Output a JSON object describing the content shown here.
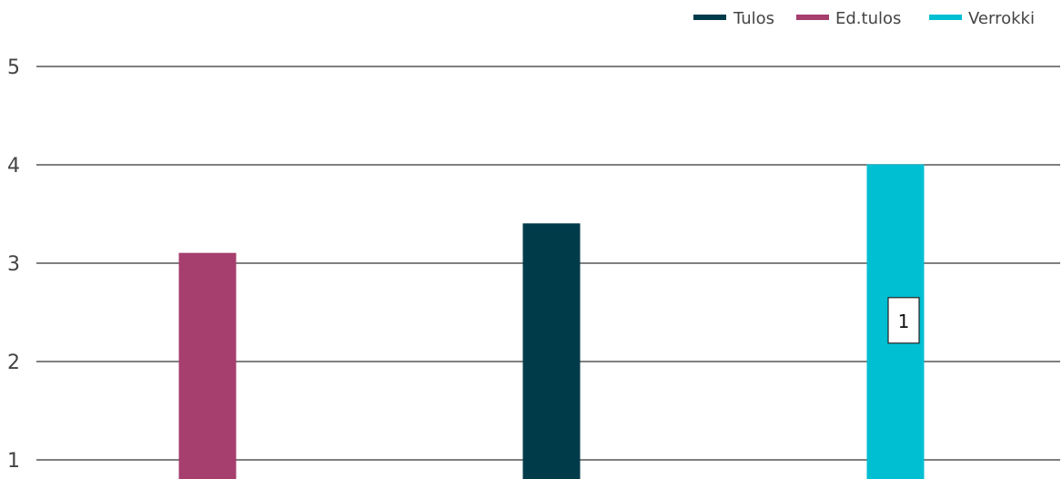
{
  "chart_data": {
    "type": "bar",
    "series": [
      {
        "name": "Tulos",
        "color": "#003b4a",
        "category_index": 1,
        "value": 3.4
      },
      {
        "name": "Ed.tulos",
        "color": "#a63e6e",
        "category_index": 0,
        "value": 3.1
      },
      {
        "name": "Verrokki",
        "color": "#00bfd3",
        "category_index": 2,
        "value": 4.0
      }
    ],
    "categories": [
      "",
      "",
      ""
    ],
    "yticks": [
      "1",
      "2",
      "3",
      "4",
      "5"
    ],
    "ylim": [
      1,
      5
    ],
    "grid": true,
    "legend_position": "top-right",
    "annotations": [
      {
        "text": "1",
        "series": "Verrokki",
        "y": 2.4
      }
    ]
  }
}
